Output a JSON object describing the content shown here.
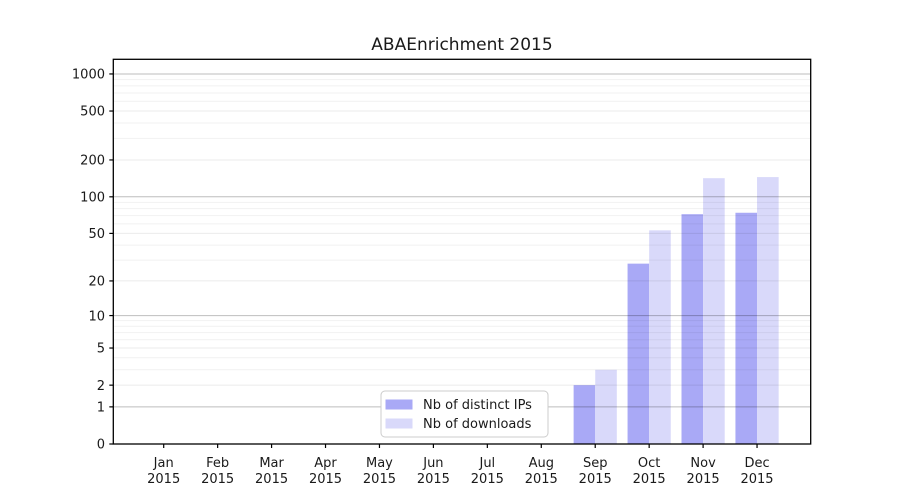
{
  "title": "ABAEnrichment 2015",
  "chart_data": {
    "type": "bar",
    "title": "ABAEnrichment 2015",
    "y_scale": "log10(1+x)",
    "ylabel": "",
    "xlabel": "",
    "grid": true,
    "legend_position": "lower center, inside plot",
    "y_ticks": [
      0,
      1,
      2,
      5,
      10,
      20,
      50,
      100,
      200,
      500,
      1000
    ],
    "y_tick_labels": [
      "0",
      "1",
      "2",
      "5",
      "10",
      "20",
      "50",
      "100",
      "200",
      "500",
      "1000"
    ],
    "categories": [
      "Jan",
      "Feb",
      "Mar",
      "Apr",
      "May",
      "Jun",
      "Jul",
      "Aug",
      "Sep",
      "Oct",
      "Nov",
      "Dec"
    ],
    "x_tick_year": "2015",
    "series": [
      {
        "name": "Nb of distinct IPs",
        "color": "#a9a9f6",
        "values": [
          0,
          0,
          0,
          0,
          0,
          0,
          0,
          0,
          2,
          28,
          72,
          74
        ]
      },
      {
        "name": "Nb of downloads",
        "color": "#d9d9fa",
        "values": [
          0,
          0,
          0,
          0,
          0,
          0,
          0,
          0,
          3,
          53,
          142,
          145
        ]
      }
    ],
    "legend": {
      "labels": [
        "Nb of distinct IPs",
        "Nb of downloads"
      ]
    }
  },
  "colors": {
    "background": "#ffffff",
    "spine": "#000000",
    "text": "#1a1a1a",
    "grid_minor": "rgba(0,0,0,0.055)",
    "grid_mid": "rgba(0,0,0,0.08)",
    "grid_decade": "rgba(0,0,0,0.26)",
    "legend_border": "#cccccc",
    "series_ips": "#a9a9f6",
    "series_downloads": "#d9d9fa"
  }
}
